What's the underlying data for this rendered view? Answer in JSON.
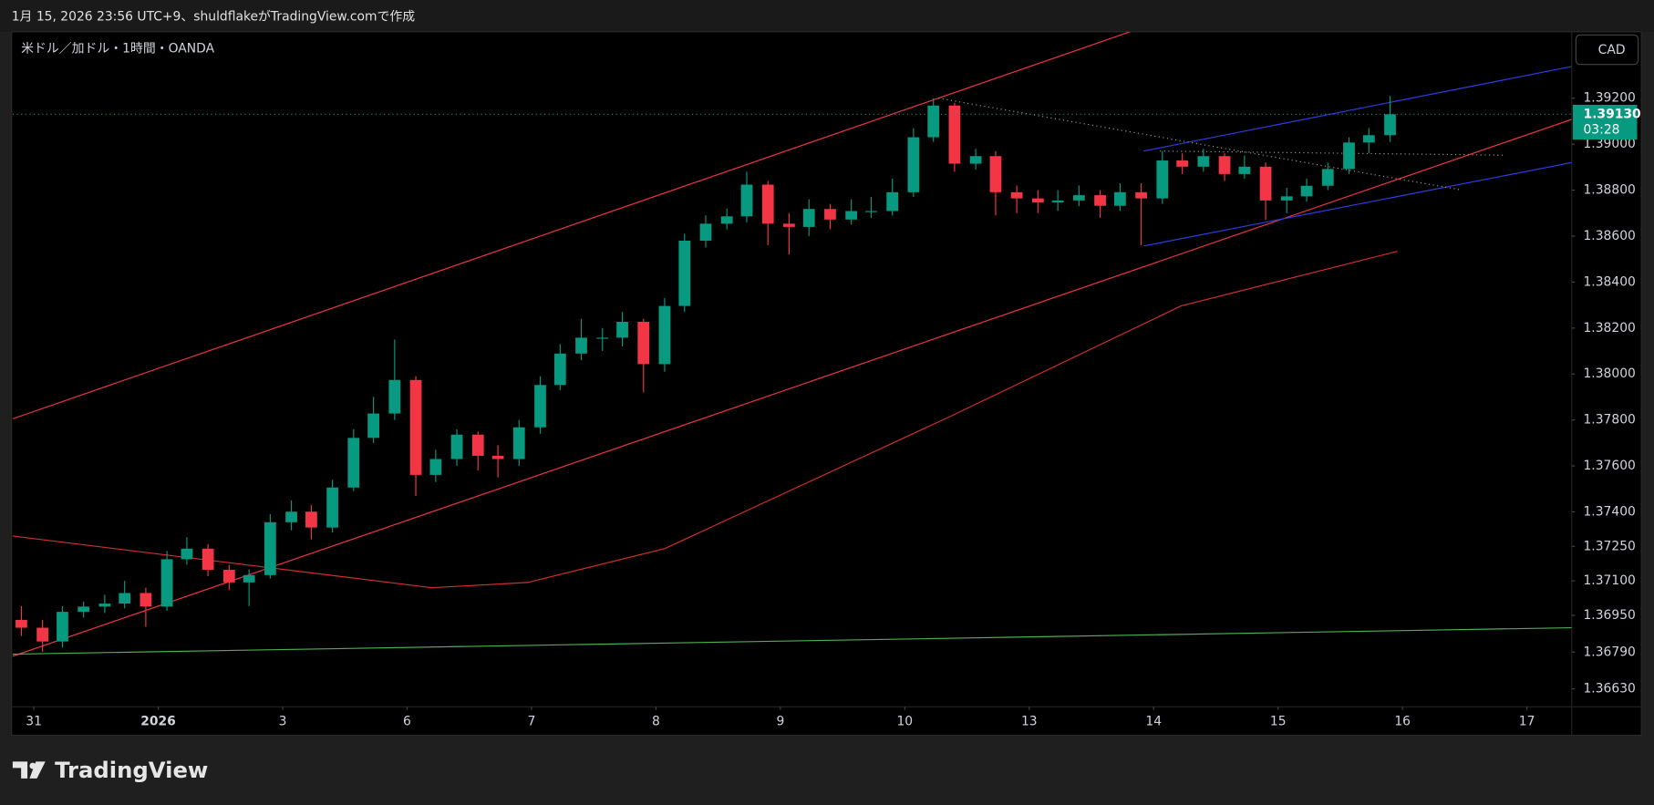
{
  "header": "1月 15, 2026 23:56 UTC+9、shuldflakeがTradingView.comで作成",
  "symbol": "米ドル／加ドル・1時間・OANDA",
  "currency_button": "CAD",
  "brand": "TradingView",
  "chart_data": {
    "type": "candlestick",
    "up_color": "#089981",
    "down_color": "#f23645",
    "xlim": [
      -0.17,
      12.36
    ],
    "ylim": [
      1.36552,
      1.39489
    ],
    "xticks": [
      {
        "value": 0,
        "label": "31"
      },
      {
        "value": 1,
        "label": "2026"
      },
      {
        "value": 2,
        "label": "3"
      },
      {
        "value": 3,
        "label": "6"
      },
      {
        "value": 4,
        "label": "7"
      },
      {
        "value": 5,
        "label": "8"
      },
      {
        "value": 6,
        "label": "9"
      },
      {
        "value": 7,
        "label": "10"
      },
      {
        "value": 8,
        "label": "13"
      },
      {
        "value": 9,
        "label": "14"
      },
      {
        "value": 10,
        "label": "15"
      },
      {
        "value": 11,
        "label": "16"
      },
      {
        "value": 12,
        "label": "17"
      }
    ],
    "yticks": [
      {
        "value": 1.392,
        "label": "1.39200"
      },
      {
        "value": 1.39,
        "label": "1.39000"
      },
      {
        "value": 1.388,
        "label": "1.38800"
      },
      {
        "value": 1.386,
        "label": "1.38600"
      },
      {
        "value": 1.384,
        "label": "1.38400"
      },
      {
        "value": 1.382,
        "label": "1.38200"
      },
      {
        "value": 1.38,
        "label": "1.38000"
      },
      {
        "value": 1.378,
        "label": "1.37800"
      },
      {
        "value": 1.376,
        "label": "1.37600"
      },
      {
        "value": 1.374,
        "label": "1.37400"
      },
      {
        "value": 1.3725,
        "label": "1.37250"
      },
      {
        "value": 1.371,
        "label": "1.37100"
      },
      {
        "value": 1.3695,
        "label": "1.36950"
      },
      {
        "value": 1.3679,
        "label": "1.36790"
      },
      {
        "value": 1.3663,
        "label": "1.36630"
      }
    ],
    "x": [
      -0.1,
      0.07,
      0.23,
      0.4,
      0.57,
      0.73,
      0.9,
      1.07,
      1.23,
      1.4,
      1.57,
      1.73,
      1.9,
      2.07,
      2.23,
      2.4,
      2.57,
      2.73,
      2.9,
      3.07,
      3.23,
      3.4,
      3.57,
      3.73,
      3.9,
      4.07,
      4.23,
      4.4,
      4.57,
      4.73,
      4.9,
      5.07,
      5.23,
      5.4,
      5.57,
      5.73,
      5.9,
      6.07,
      6.23,
      6.4,
      6.57,
      6.73,
      6.9,
      7.07,
      7.23,
      7.4,
      7.57,
      7.73,
      7.9,
      8.07,
      8.23,
      8.4,
      8.57,
      8.73,
      8.9,
      9.07,
      9.23,
      9.4,
      9.57,
      9.73,
      9.9,
      10.07,
      10.23,
      10.4,
      10.57,
      10.73,
      10.9
    ],
    "open": [
      1.3693,
      1.36896,
      1.36836,
      1.36965,
      1.36988,
      1.37001,
      1.37047,
      1.36988,
      1.37194,
      1.3724,
      1.37148,
      1.37093,
      1.37125,
      1.37355,
      1.37401,
      1.37332,
      1.37506,
      1.37722,
      1.37828,
      1.37974,
      1.37561,
      1.3763,
      1.37736,
      1.37644,
      1.3763,
      1.37768,
      1.37952,
      1.38089,
      1.38158,
      1.38158,
      1.38227,
      1.38043,
      1.38296,
      1.3858,
      1.38654,
      1.38686,
      1.38824,
      1.38654,
      1.3864,
      1.38718,
      1.38672,
      1.38709,
      1.38709,
      1.38791,
      1.3903,
      1.39168,
      1.38915,
      1.38948,
      1.38791,
      1.38764,
      1.38746,
      1.38755,
      1.38778,
      1.38732,
      1.38791,
      1.38764,
      1.38929,
      1.38902,
      1.38948,
      1.3887,
      1.38902,
      1.38755,
      1.38773,
      1.38819,
      1.38892,
      1.39007,
      1.39039
    ],
    "high": [
      1.3699,
      1.3693,
      1.3699,
      1.3701,
      1.3704,
      1.371,
      1.3707,
      1.3723,
      1.3729,
      1.3726,
      1.3717,
      1.3715,
      1.3739,
      1.3745,
      1.3743,
      1.3754,
      1.3776,
      1.379,
      1.3815,
      1.3799,
      1.3767,
      1.3776,
      1.3775,
      1.3769,
      1.378,
      1.3799,
      1.3813,
      1.3824,
      1.382,
      1.3827,
      1.3824,
      1.3833,
      1.3861,
      1.3869,
      1.3872,
      1.3888,
      1.3884,
      1.387,
      1.3876,
      1.3874,
      1.3876,
      1.3877,
      1.3885,
      1.3907,
      1.392,
      1.3918,
      1.3898,
      1.3897,
      1.3882,
      1.388,
      1.388,
      1.3882,
      1.388,
      1.3883,
      1.3883,
      1.3897,
      1.3896,
      1.3898,
      1.3896,
      1.3895,
      1.3892,
      1.3881,
      1.3885,
      1.3892,
      1.3903,
      1.3907,
      1.3921
    ],
    "low": [
      1.3686,
      1.3679,
      1.3681,
      1.3694,
      1.3696,
      1.3698,
      1.369,
      1.3697,
      1.3717,
      1.3712,
      1.3706,
      1.3699,
      1.3711,
      1.3732,
      1.3728,
      1.3731,
      1.3749,
      1.377,
      1.378,
      1.3747,
      1.3753,
      1.376,
      1.3758,
      1.3755,
      1.376,
      1.3774,
      1.3793,
      1.3806,
      1.381,
      1.3812,
      1.3792,
      1.3801,
      1.3827,
      1.3855,
      1.3863,
      1.3866,
      1.3856,
      1.3852,
      1.386,
      1.3863,
      1.3865,
      1.3868,
      1.3869,
      1.3877,
      1.3901,
      1.3888,
      1.3889,
      1.3869,
      1.387,
      1.387,
      1.3871,
      1.3873,
      1.3868,
      1.3871,
      1.3856,
      1.3874,
      1.3887,
      1.3888,
      1.3884,
      1.3885,
      1.3867,
      1.387,
      1.3875,
      1.388,
      1.3887,
      1.3896,
      1.3901
    ],
    "close": [
      1.36896,
      1.36836,
      1.36965,
      1.36988,
      1.37001,
      1.37047,
      1.36988,
      1.37194,
      1.3724,
      1.37148,
      1.37093,
      1.37125,
      1.37355,
      1.37401,
      1.37332,
      1.37506,
      1.37722,
      1.37828,
      1.37974,
      1.37561,
      1.3763,
      1.37736,
      1.37644,
      1.3763,
      1.37768,
      1.37952,
      1.38089,
      1.38158,
      1.38158,
      1.38227,
      1.38043,
      1.38296,
      1.3858,
      1.38654,
      1.38686,
      1.38824,
      1.38654,
      1.3864,
      1.38718,
      1.38672,
      1.38709,
      1.38709,
      1.38791,
      1.3903,
      1.39168,
      1.38915,
      1.38948,
      1.38791,
      1.38764,
      1.38746,
      1.38755,
      1.38778,
      1.38732,
      1.38791,
      1.38764,
      1.38929,
      1.38902,
      1.38948,
      1.3887,
      1.38902,
      1.38755,
      1.38773,
      1.38819,
      1.38892,
      1.39007,
      1.39039,
      1.3913
    ],
    "lines": [
      {
        "color": "#f23645",
        "style": "solid",
        "x": [
          -0.17,
          8.81
        ],
        "y": [
          1.37805,
          1.39489
        ]
      },
      {
        "color": "#f23645",
        "style": "solid",
        "x": [
          -0.17,
          12.36
        ],
        "y": [
          1.36772,
          1.39108
        ]
      },
      {
        "color": "#d32f2f",
        "style": "solid",
        "x": [
          -0.17,
          3.2,
          3.97,
          5.07,
          7.36,
          9.22,
          10.96
        ],
        "y": [
          1.37295,
          1.3707,
          1.37093,
          1.3724,
          1.37814,
          1.38296,
          1.38534
        ]
      },
      {
        "color": "#4caf50",
        "style": "solid",
        "x": [
          -0.17,
          12.36
        ],
        "y": [
          1.36781,
          1.36896
        ]
      },
      {
        "color": "#2f3ee8",
        "style": "solid",
        "x": [
          8.92,
          12.36
        ],
        "y": [
          1.3897,
          1.39338
        ]
      },
      {
        "color": "#2f3ee8",
        "style": "solid",
        "x": [
          8.92,
          12.36
        ],
        "y": [
          1.38557,
          1.3892
        ]
      },
      {
        "color": "#9e9e9e",
        "style": "dotted",
        "x": [
          7.27,
          11.47
        ],
        "y": [
          1.392,
          1.38801
        ]
      },
      {
        "color": "#9e9e9e",
        "style": "dotted",
        "x": [
          9.05,
          11.83
        ],
        "y": [
          1.3897,
          1.38952
        ]
      }
    ],
    "last_price": {
      "value": 1.3913,
      "label": "1.39130"
    },
    "countdown": "03:28",
    "tag_color": "#089981"
  }
}
